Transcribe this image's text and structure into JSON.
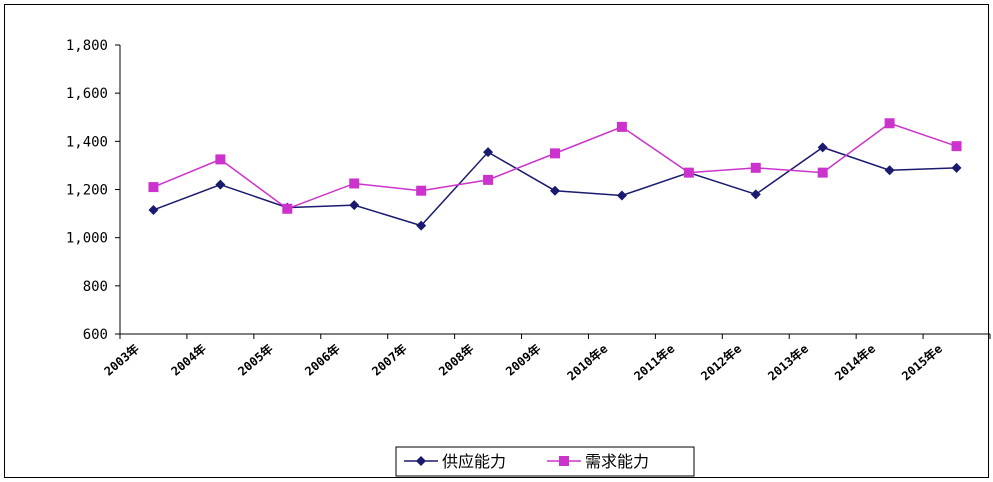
{
  "chart_data": {
    "type": "line",
    "title": "",
    "xlabel": "",
    "ylabel": "",
    "categories": [
      "2003年",
      "2004年",
      "2005年",
      "2006年",
      "2007年",
      "2008年",
      "2009年",
      "2010年e",
      "2011年e",
      "2012年e",
      "2013年e",
      "2014年e",
      "2015年e"
    ],
    "series": [
      {
        "name": "供应能力",
        "color": "#1a1a6e",
        "marker": "diamond",
        "values": [
          1115,
          1220,
          1125,
          1135,
          1050,
          1355,
          1195,
          1175,
          1270,
          1180,
          1375,
          1280,
          1290
        ]
      },
      {
        "name": "需求能力",
        "color": "#cc33cc",
        "marker": "square",
        "values": [
          1210,
          1325,
          1120,
          1225,
          1195,
          1240,
          1350,
          1460,
          1270,
          1290,
          1270,
          1475,
          1380
        ]
      }
    ],
    "ylim": [
      600,
      1800
    ],
    "yticks": [
      600,
      800,
      1000,
      1200,
      1400,
      1600,
      1800
    ],
    "ytick_labels": [
      "600",
      "800",
      "1,000",
      "1,200",
      "1,400",
      "1,600",
      "1,800"
    ],
    "grid": false,
    "legend_position": "bottom"
  }
}
